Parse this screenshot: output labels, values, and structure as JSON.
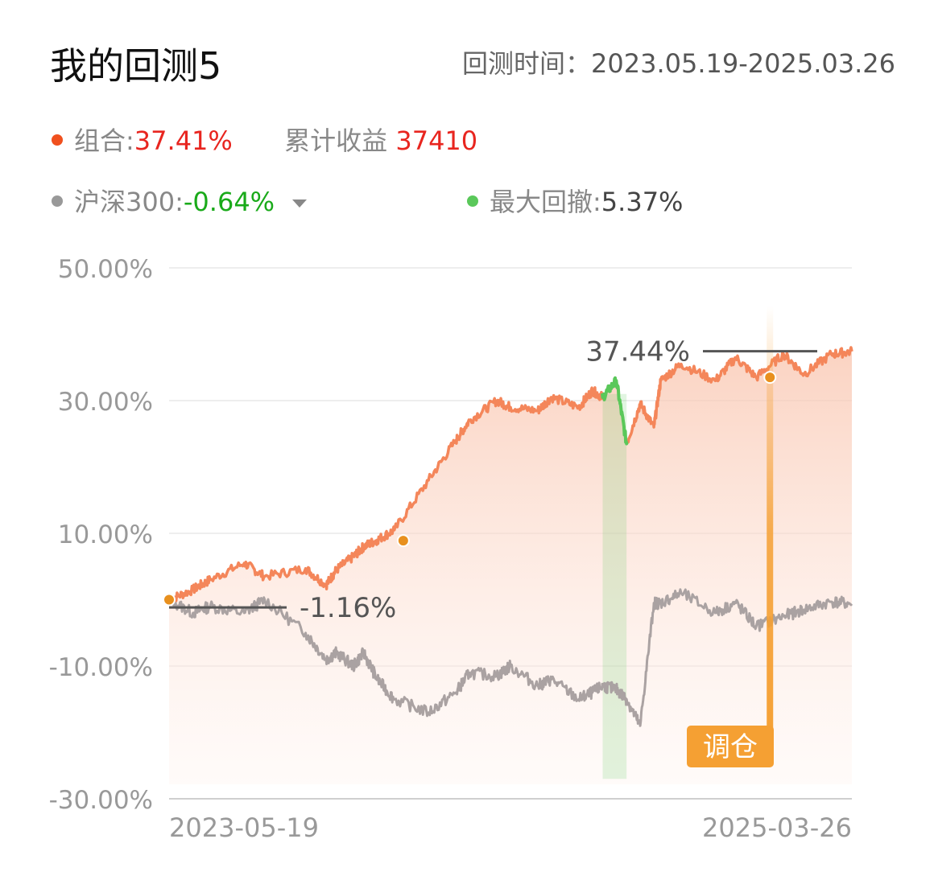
{
  "header": {
    "title": "我的回测5",
    "period_label": "回测时间：",
    "period_value": "2023.05.19-2025.03.26"
  },
  "summary": {
    "portfolio_label": "组合:",
    "portfolio_value": "37.41%",
    "cumulative_label": "累计收益",
    "cumulative_value": "37410",
    "benchmark_label": "沪深300:",
    "benchmark_value": "-0.64%",
    "drawdown_label": "最大回撤:",
    "drawdown_value": "5.37%"
  },
  "colors": {
    "portfolio": "#f0501e",
    "portfolio_line": "#f4865a",
    "benchmark": "#999999",
    "benchmark_line": "#aaa2a2",
    "drawdown": "#5ac85a",
    "rebalance": "#f5a033",
    "positive": "#e8251f",
    "negative": "#1aaa1a"
  },
  "chart_data": {
    "type": "line",
    "y_ticks": [
      "50.00%",
      "30.00%",
      "10.00%",
      "-10.00%",
      "-30.00%"
    ],
    "ylim": [
      -30,
      50
    ],
    "x_labels": [
      "2023-05-19",
      "2025-03-26"
    ],
    "x": [
      0,
      0.035,
      0.06,
      0.11,
      0.14,
      0.2,
      0.23,
      0.245,
      0.27,
      0.285,
      0.305,
      0.33,
      0.38,
      0.42,
      0.44,
      0.48,
      0.5,
      0.54,
      0.56,
      0.6,
      0.62,
      0.635,
      0.655,
      0.67,
      0.69,
      0.71,
      0.72,
      0.75,
      0.8,
      0.83,
      0.86,
      0.9,
      0.93,
      0.97,
      1.0
    ],
    "series": [
      {
        "name": "组合",
        "values": [
          0,
          1.5,
          3,
          5.5,
          3.5,
          4.7,
          2.2,
          4.5,
          6.5,
          8,
          9,
          10.5,
          18,
          24,
          27,
          30,
          29,
          28.5,
          30.5,
          29,
          31.5,
          30.5,
          33,
          23.5,
          29.5,
          26,
          33,
          35.5,
          33,
          36.5,
          33.5,
          37,
          34,
          37,
          37.41
        ]
      },
      {
        "name": "沪深300",
        "values": [
          0,
          -2,
          -1,
          -2,
          0,
          -5,
          -9,
          -8,
          -10,
          -8,
          -12,
          -15,
          -17,
          -14,
          -11,
          -11.5,
          -10,
          -13,
          -12,
          -15,
          -14,
          -13,
          -13.5,
          -15,
          -19,
          -0.5,
          -0.5,
          1,
          -2,
          -0.5,
          -4,
          -2.5,
          -1.5,
          -0.3,
          -0.64
        ]
      }
    ],
    "annotations": {
      "max_label": "37.44%",
      "min_label": "-1.16%",
      "rebalance_label": "调仓"
    }
  }
}
